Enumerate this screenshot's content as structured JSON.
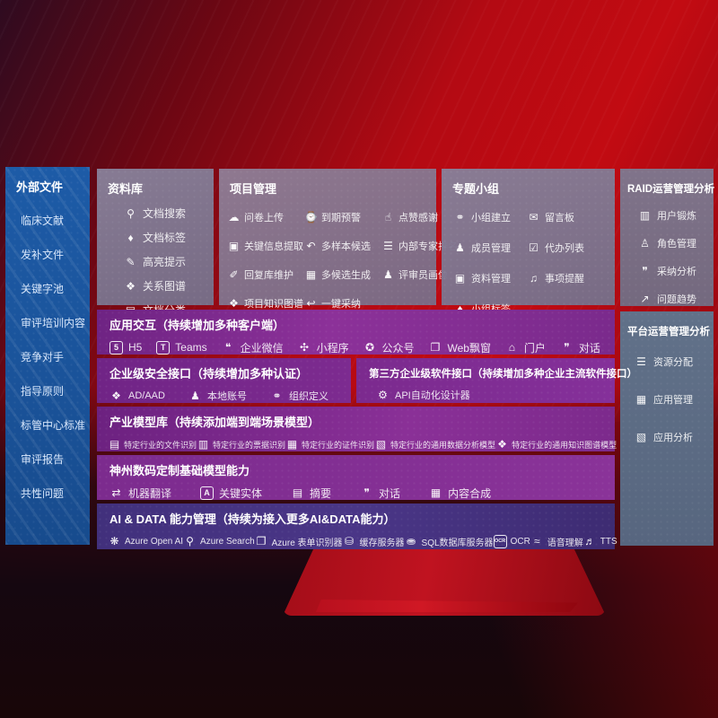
{
  "colors": {
    "background_red": "#c20b12",
    "sidebar_blue": "#1d5ba7",
    "panel_gray": "#7e7590",
    "panel_steel": "#5d6e88",
    "capability_purple": "#7d2b90",
    "aidata_indigo": "#44317d"
  },
  "sidebar": {
    "title": "外部文件",
    "items": [
      "临床文献",
      "发补文件",
      "关键字池",
      "审评培训内容",
      "竞争对手",
      "指导原则",
      "标管中心标准",
      "审评报告",
      "共性问题"
    ]
  },
  "panels": {
    "library": {
      "title": "资料库",
      "items": [
        {
          "icon": "doc-search-icon",
          "label": "文档搜索"
        },
        {
          "icon": "doc-tag-icon",
          "label": "文档标签"
        },
        {
          "icon": "highlight-icon",
          "label": "高亮提示"
        },
        {
          "icon": "relation-graph-icon",
          "label": "关系图谱"
        },
        {
          "icon": "doc-category-icon",
          "label": "文档分类"
        }
      ]
    },
    "project": {
      "title": "项目管理",
      "items": [
        {
          "icon": "questionnaire-upload-icon",
          "label": "问卷上传"
        },
        {
          "icon": "due-warning-icon",
          "label": "到期预警"
        },
        {
          "icon": "like-thanks-icon",
          "label": "点赞感谢"
        },
        {
          "icon": "key-info-extract-icon",
          "label": "关键信息提取"
        },
        {
          "icon": "multi-sample-icon",
          "label": "多样本候选"
        },
        {
          "icon": "expert-ranking-icon",
          "label": "内部专家排名"
        },
        {
          "icon": "reply-maintain-icon",
          "label": "回复库维护"
        },
        {
          "icon": "multi-candidate-icon",
          "label": "多候选生成"
        },
        {
          "icon": "reviewer-portrait-icon",
          "label": "评审员画像"
        },
        {
          "icon": "project-knowledge-graph-icon",
          "label": "项目知识图谱"
        },
        {
          "icon": "one-click-adopt-icon",
          "label": "一键采纳"
        }
      ]
    },
    "groups": {
      "title": "专题小组",
      "items": [
        {
          "icon": "group-create-icon",
          "label": "小组建立"
        },
        {
          "icon": "message-board-icon",
          "label": "留言板"
        },
        {
          "icon": "member-manage-icon",
          "label": "成员管理"
        },
        {
          "icon": "todo-list-icon",
          "label": "代办列表"
        },
        {
          "icon": "material-manage-icon",
          "label": "资料管理"
        },
        {
          "icon": "reminder-bell-icon",
          "label": "事项提醒"
        },
        {
          "icon": "group-tag-icon",
          "label": "小组标签"
        }
      ]
    },
    "raid": {
      "title": "RAID运营管理分析",
      "items": [
        {
          "icon": "user-card-icon",
          "label": "用户锻炼"
        },
        {
          "icon": "role-manage-icon",
          "label": "角色管理"
        },
        {
          "icon": "adoption-analysis-icon",
          "label": "采纳分析"
        },
        {
          "icon": "issue-trend-icon",
          "label": "问题趋势"
        }
      ]
    },
    "platform": {
      "title": "平台运营管理分析",
      "items": [
        {
          "icon": "resource-allocation-icon",
          "label": "资源分配"
        },
        {
          "icon": "app-manage-icon",
          "label": "应用管理"
        },
        {
          "icon": "app-analysis-icon",
          "label": "应用分析"
        }
      ]
    }
  },
  "rows": {
    "interaction": {
      "title": "应用交互（持续增加多种客户端）",
      "items": [
        {
          "icon": "h5-icon",
          "label": "H5"
        },
        {
          "icon": "teams-icon",
          "label": "Teams"
        },
        {
          "icon": "wechat-work-icon",
          "label": "企业微信"
        },
        {
          "icon": "miniprogram-icon",
          "label": "小程序"
        },
        {
          "icon": "official-account-icon",
          "label": "公众号"
        },
        {
          "icon": "web-popup-icon",
          "label": "Web飘窗"
        },
        {
          "icon": "portal-icon",
          "label": "门户"
        },
        {
          "icon": "dialog-icon",
          "label": "对话"
        }
      ]
    },
    "security": {
      "title": "企业级安全接口（持续增加多种认证）",
      "items": [
        {
          "icon": "ad-aad-icon",
          "label": "AD/AAD"
        },
        {
          "icon": "local-account-icon",
          "label": "本地账号"
        },
        {
          "icon": "org-define-icon",
          "label": "组织定义"
        }
      ]
    },
    "thirdparty": {
      "title": "第三方企业级软件接口（持续增加多种企业主流软件接口）",
      "items": [
        {
          "icon": "api-designer-icon",
          "label": "API自动化设计器"
        }
      ]
    },
    "models": {
      "title": "产业模型库（持续添加端到端场景模型）",
      "items": [
        {
          "icon": "file-recognition-icon",
          "label": "特定行业的文件识别"
        },
        {
          "icon": "receipt-recognition-icon",
          "label": "特定行业的票据识别"
        },
        {
          "icon": "credential-recognition-icon",
          "label": "特定行业的证件识别"
        },
        {
          "icon": "data-analysis-model-icon",
          "label": "特定行业的通用数据分析模型"
        },
        {
          "icon": "knowledge-graph-model-icon",
          "label": "特定行业的通用知识图谱模型"
        }
      ]
    },
    "foundation": {
      "title": "神州数码定制基础模型能力",
      "items": [
        {
          "icon": "machine-translation-icon",
          "label": "机器翻译"
        },
        {
          "icon": "key-entity-icon",
          "label": "关键实体"
        },
        {
          "icon": "summary-icon",
          "label": "摘要"
        },
        {
          "icon": "chat-icon",
          "label": "对话"
        },
        {
          "icon": "content-synthesis-icon",
          "label": "内容合成"
        }
      ]
    },
    "aidata": {
      "title": "AI & DATA 能力管理（持续为接入更多AI&DATA能力）",
      "items": [
        {
          "icon": "azure-openai-icon",
          "label": "Azure Open AI"
        },
        {
          "icon": "azure-search-icon",
          "label": "Azure Search"
        },
        {
          "icon": "azure-form-icon",
          "label": "Azure 表单识别器"
        },
        {
          "icon": "cache-server-icon",
          "label": "缓存服务器"
        },
        {
          "icon": "sql-server-icon",
          "label": "SQL数据库服务器"
        },
        {
          "icon": "ocr-icon",
          "label": "OCR"
        },
        {
          "icon": "speech-icon",
          "label": "语音理解"
        },
        {
          "icon": "tts-icon",
          "label": "TTS"
        }
      ]
    }
  }
}
